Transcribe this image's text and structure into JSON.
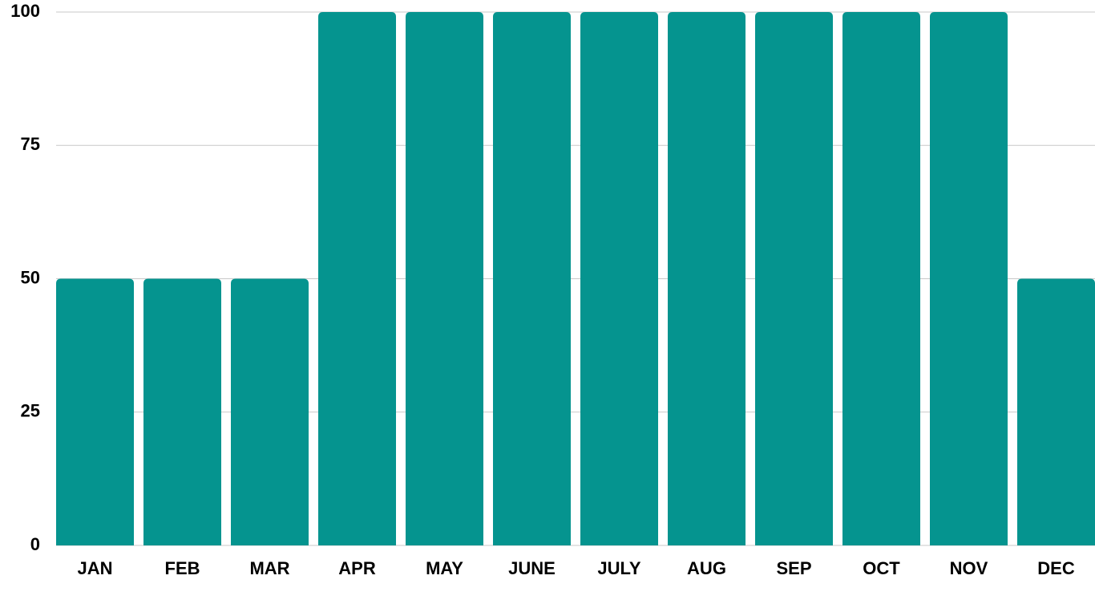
{
  "chart_data": {
    "type": "bar",
    "categories": [
      "JAN",
      "FEB",
      "MAR",
      "APR",
      "MAY",
      "JUNE",
      "JULY",
      "AUG",
      "SEP",
      "OCT",
      "NOV",
      "DEC"
    ],
    "values": [
      50,
      50,
      50,
      100,
      100,
      100,
      100,
      100,
      100,
      100,
      100,
      50
    ],
    "color": "#05948f",
    "ylim": [
      0,
      100
    ],
    "yticks": [
      0,
      25,
      50,
      75,
      100
    ],
    "grid": true
  }
}
